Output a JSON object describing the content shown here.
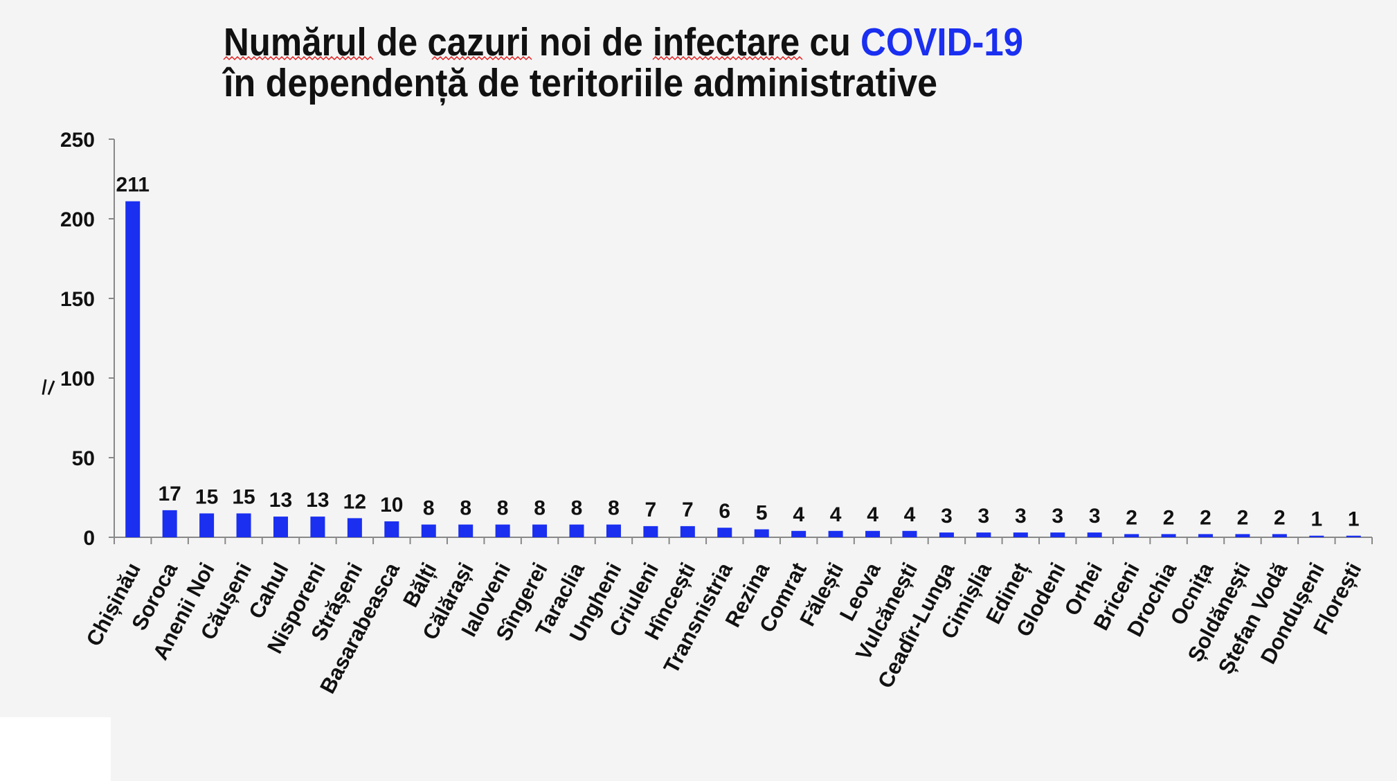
{
  "chart_data": {
    "type": "bar",
    "title": "Numărul de cazuri noi de infectare cu COVID-19 în dependență de teritoriile administrative",
    "title_line1_parts": [
      "Numărul de cazuri noi de infectare cu ",
      "COVID-19"
    ],
    "title_line2": "în dependență de teritoriile administrative",
    "xlabel": "",
    "ylabel": "",
    "ylim": [
      0,
      250
    ],
    "yticks": [
      0,
      50,
      100,
      150,
      200,
      250
    ],
    "grid": false,
    "bar_color": "#1a2ff0",
    "accent_color": "#1a2ff0",
    "categories": [
      "Chișinău",
      "Soroca",
      "Anenii Noi",
      "Căușeni",
      "Cahul",
      "Nisporeni",
      "Strășeni",
      "Basarabeasca",
      "Bălți",
      "Călărași",
      "Ialoveni",
      "Sîngerei",
      "Taraclia",
      "Ungheni",
      "Criuleni",
      "Hîncești",
      "Transnistria",
      "Rezina",
      "Comrat",
      "Fălești",
      "Leova",
      "Vulcănești",
      "Ceadîr-Lunga",
      "Cimișlia",
      "Edineț",
      "Glodeni",
      "Orhei",
      "Briceni",
      "Drochia",
      "Ocnița",
      "Șoldănești",
      "Ștefan Vodă",
      "Dondușeni",
      "Florești"
    ],
    "values": [
      211,
      17,
      15,
      15,
      13,
      13,
      12,
      10,
      8,
      8,
      8,
      8,
      8,
      8,
      7,
      7,
      6,
      5,
      4,
      4,
      4,
      4,
      3,
      3,
      3,
      3,
      3,
      2,
      2,
      2,
      2,
      2,
      1,
      1
    ]
  }
}
